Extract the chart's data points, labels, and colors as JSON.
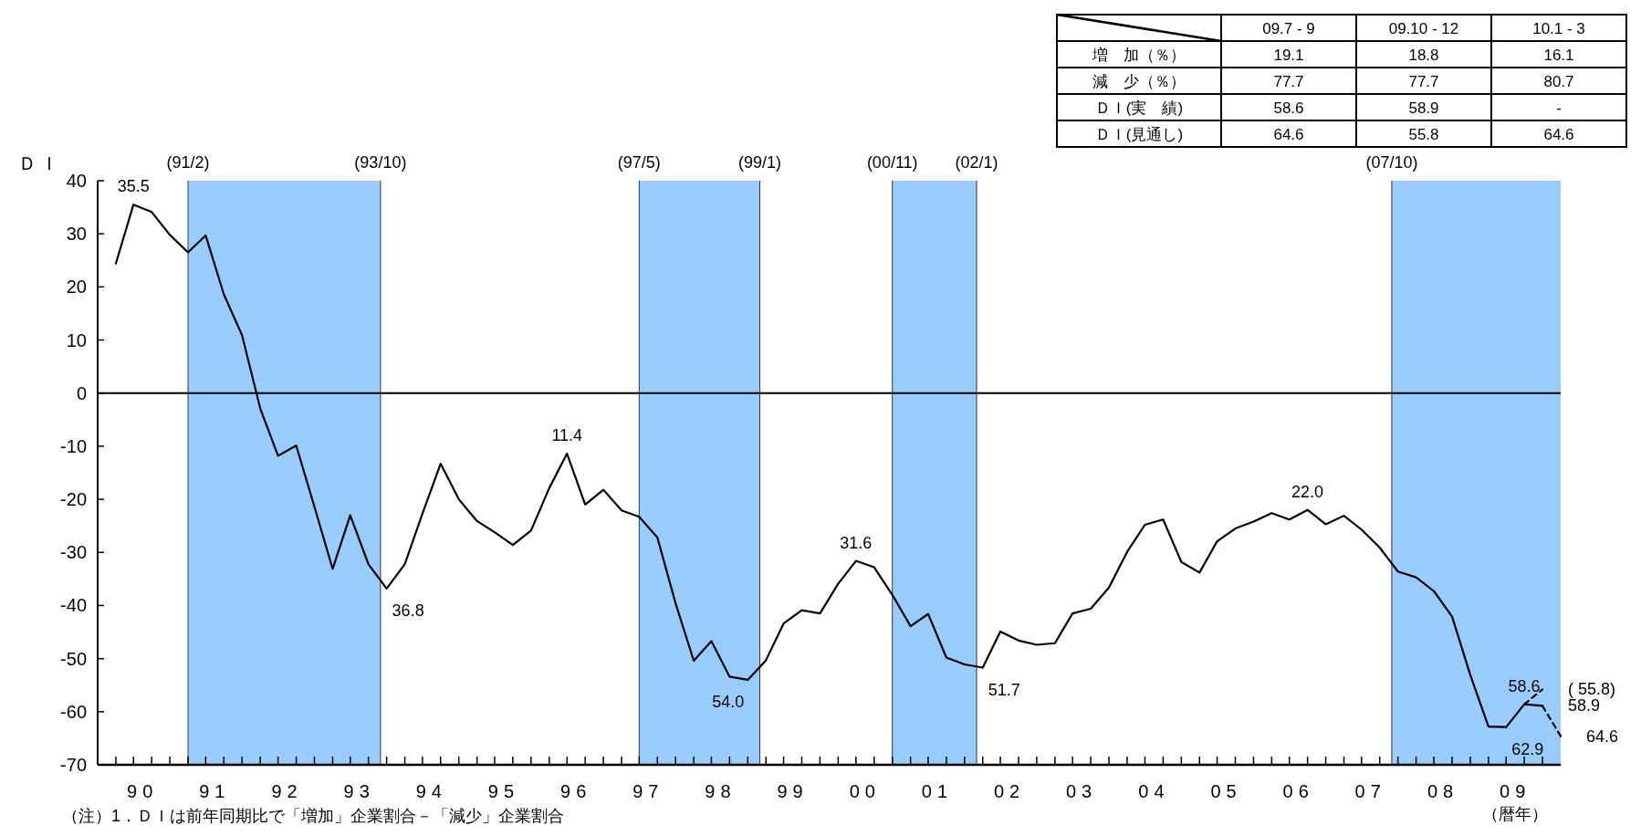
{
  "chart_data": [
    {
      "type": "line",
      "ylabel": "ＤＩ",
      "xlabel": "（暦年）",
      "xlim": [
        "1989-11",
        "2010-02"
      ],
      "xticks": [
        {
          "value": "1990-06-16",
          "label": "90"
        },
        {
          "value": "1991-06-16",
          "label": "91"
        },
        {
          "value": "1992-06-16",
          "label": "92"
        },
        {
          "value": "1993-06-16",
          "label": "93"
        },
        {
          "value": "1994-06-16",
          "label": "94"
        },
        {
          "value": "1995-06-16",
          "label": "95"
        },
        {
          "value": "1996-06-16",
          "label": "96"
        },
        {
          "value": "1997-06-16",
          "label": "97"
        },
        {
          "value": "1998-06-16",
          "label": "98"
        },
        {
          "value": "1999-06-16",
          "label": "99"
        },
        {
          "value": "2000-06-16",
          "label": "00"
        },
        {
          "value": "2001-06-16",
          "label": "01"
        },
        {
          "value": "2002-06-16",
          "label": "02"
        },
        {
          "value": "2003-06-16",
          "label": "03"
        },
        {
          "value": "2004-06-16",
          "label": "04"
        },
        {
          "value": "2005-06-16",
          "label": "05"
        },
        {
          "value": "2006-06-16",
          "label": "06"
        },
        {
          "value": "2007-06-16",
          "label": "07"
        },
        {
          "value": "2008-06-16",
          "label": "08"
        },
        {
          "value": "2009-06-16",
          "label": "09"
        }
      ],
      "ylim": [
        -70,
        40
      ],
      "yticks": [
        -70,
        -60,
        -50,
        -40,
        -30,
        -20,
        -10,
        0,
        10,
        20,
        30,
        40
      ],
      "x": [
        "1990-02",
        "1990-05",
        "1990-08",
        "1990-11",
        "1991-02",
        "1991-05",
        "1991-08",
        "1991-11",
        "1992-02",
        "1992-05",
        "1992-08",
        "1992-11",
        "1993-02",
        "1993-05",
        "1993-08",
        "1993-11",
        "1994-02",
        "1994-05",
        "1994-08",
        "1994-11",
        "1995-02",
        "1995-05",
        "1995-08",
        "1995-11",
        "1996-02",
        "1996-05",
        "1996-08",
        "1996-11",
        "1997-02",
        "1997-05",
        "1997-08",
        "1997-11",
        "1998-02",
        "1998-05",
        "1998-08",
        "1998-11",
        "1999-02",
        "1999-05",
        "1999-08",
        "1999-11",
        "2000-02",
        "2000-05",
        "2000-08",
        "2000-11",
        "2001-02",
        "2001-05",
        "2001-08",
        "2001-11",
        "2002-02",
        "2002-05",
        "2002-08",
        "2002-11",
        "2003-02",
        "2003-05",
        "2003-08",
        "2003-11",
        "2004-02",
        "2004-05",
        "2004-08",
        "2004-11",
        "2005-02",
        "2005-05",
        "2005-08",
        "2005-11",
        "2006-02",
        "2006-05",
        "2006-08",
        "2006-11",
        "2007-02",
        "2007-05",
        "2007-08",
        "2007-11",
        "2008-02",
        "2008-05",
        "2008-08",
        "2008-11",
        "2009-02",
        "2009-05",
        "2009-08",
        "2009-11"
      ],
      "series": [
        {
          "color": "#000000",
          "line_style": "solid",
          "values": [
            24.4,
            35.5,
            34.1,
            29.8,
            26.5,
            29.7,
            18.6,
            10.9,
            -2.9,
            -11.8,
            -9.9,
            -21.4,
            -33.1,
            -23.0,
            -32.2,
            -36.8,
            -32.2,
            -22.7,
            -13.3,
            -20.0,
            -24.1,
            -26.2,
            -28.6,
            -25.9,
            -17.9,
            -11.4,
            -21.0,
            -18.2,
            -22.1,
            -23.3,
            -27.2,
            -39.6,
            -50.4,
            -46.7,
            -53.4,
            -54.0,
            -50.3,
            -43.4,
            -40.9,
            -41.5,
            -35.9,
            -31.6,
            -32.8,
            -38.0,
            -43.9,
            -41.6,
            -49.8,
            -51.1,
            -51.7,
            -44.9,
            -46.6,
            -47.4,
            -47.1,
            -41.5,
            -40.6,
            -36.6,
            -29.9,
            -24.8,
            -23.8,
            -31.8,
            -33.8,
            -27.9,
            -25.5,
            -24.2,
            -22.6,
            -23.8,
            -22.0,
            -24.7,
            -23.1,
            -25.7,
            -29.1,
            -33.6,
            -34.7,
            -37.3,
            -42.1,
            -53.1,
            -62.8,
            -62.9,
            -58.6,
            -58.9
          ]
        },
        {
          "color": "#000000",
          "line_style": "dashed",
          "x": [
            "2009-08",
            "2009-11"
          ],
          "values": [
            -58.6,
            -55.8
          ]
        },
        {
          "color": "#000000",
          "line_style": "dashed",
          "x": [
            "2009-11",
            "2010-02"
          ],
          "values": [
            -58.9,
            -64.6
          ]
        }
      ],
      "bands": [
        {
          "axis": "x",
          "from": "1991-02",
          "to": "1993-10",
          "color": "#99ccff"
        },
        {
          "axis": "x",
          "from": "1997-05",
          "to": "1999-01",
          "color": "#99ccff"
        },
        {
          "axis": "x",
          "from": "2000-11",
          "to": "2002-01",
          "color": "#99ccff"
        },
        {
          "axis": "x",
          "from": "2007-10",
          "to": "2010-02",
          "color": "#99ccff"
        }
      ],
      "ref_lines": [
        {
          "axis": "y",
          "value": 0,
          "color": "#000000"
        },
        {
          "axis": "x",
          "value": "1991-02",
          "label": "(91/2)",
          "color": "#333333"
        },
        {
          "axis": "x",
          "value": "1993-10",
          "label": "(93/10)",
          "color": "#333333"
        },
        {
          "axis": "x",
          "value": "1997-05",
          "label": "(97/5)",
          "color": "#333333"
        },
        {
          "axis": "x",
          "value": "1999-01",
          "label": "(99/1)",
          "color": "#333333"
        },
        {
          "axis": "x",
          "value": "2000-11",
          "label": "(00/11)",
          "color": "#333333"
        },
        {
          "axis": "x",
          "value": "2002-01",
          "label": "(02/1)",
          "color": "#333333"
        },
        {
          "axis": "x",
          "value": "2007-10",
          "label": "(07/10)",
          "color": "#333333"
        }
      ],
      "annotations": [
        {
          "text": "35.5",
          "x": "1990-05",
          "y": 35.5
        },
        {
          "text": "36.8",
          "x": "1993-11",
          "y": -36.8
        },
        {
          "text": "11.4",
          "x": "1996-05",
          "y": -11.4
        },
        {
          "text": "54.0",
          "x": "1998-11",
          "y": -54.0
        },
        {
          "text": "31.6",
          "x": "2000-05",
          "y": -31.6
        },
        {
          "text": "51.7",
          "x": "2002-02",
          "y": -51.7
        },
        {
          "text": "22.0",
          "x": "2006-08",
          "y": -22.0
        },
        {
          "text": "62.9",
          "x": "2009-05",
          "y": -62.9
        },
        {
          "text": "58.6",
          "x": "2009-08",
          "y": -58.6
        },
        {
          "text": "( 55.8)",
          "x": "2009-11",
          "y": -55.8
        },
        {
          "text": "58.9",
          "x": "2009-11",
          "y": -58.9
        },
        {
          "text": "64.6",
          "x": "2010-02",
          "y": -64.6
        },
        "（注）1．ＤＩは前年同期比で「増加」企業割合－「減少」企業割合"
      ]
    },
    {
      "type": "other",
      "categories": [
        "09.7 - 9",
        "09.10 - 12",
        "10.1 - 3"
      ],
      "annotations": [
        "増　加（％）",
        "19.1",
        "18.8",
        "16.1",
        "減　少（％）",
        "77.7",
        "77.7",
        "80.7",
        "ＤＩ(実　績)",
        "58.6",
        "58.9",
        "-",
        "ＤＩ(見通し)",
        "64.6",
        "55.8",
        "64.6"
      ]
    }
  ]
}
